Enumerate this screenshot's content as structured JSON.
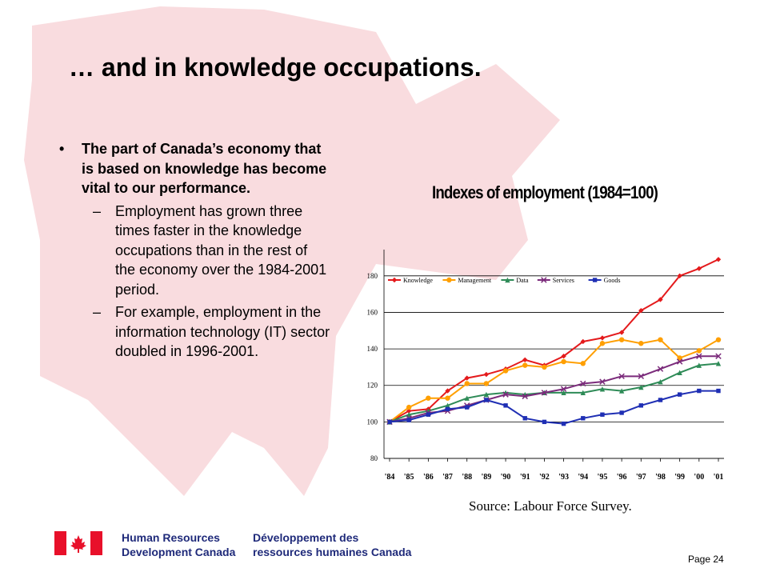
{
  "slide": {
    "title": "… and in knowledge occupations.",
    "bullet": "The part of Canada’s economy that is based on knowledge has become vital to our performance.",
    "sub_bullets": [
      "Employment has grown three times faster in the knowledge occupations than in the rest of the economy over the 1984-2001 period.",
      "For example, employment in the information technology (IT) sector doubled in 1996-2001."
    ],
    "source": "Source: Labour Force Survey.",
    "page": "Page 24"
  },
  "footer": {
    "org_en_line1": "Human Resources",
    "org_en_line2": "Development Canada",
    "org_fr_line1": "Développement des",
    "org_fr_line2": "ressources humaines Canada"
  },
  "colors": {
    "maple_leaf": "#f9dcdf",
    "flag_red": "#e8102a",
    "org_text": "#1f2a7a"
  },
  "chart_data": {
    "type": "line",
    "title": "Indexes of employment (1984=100)",
    "categories": [
      "'84",
      "'85",
      "'86",
      "'87",
      "'88",
      "'89",
      "'90",
      "'91",
      "'92",
      "'93",
      "'94",
      "'95",
      "'96",
      "'97",
      "'98",
      "'99",
      "'00",
      "'01"
    ],
    "ylim": [
      80,
      190
    ],
    "yticks": [
      80,
      100,
      120,
      140,
      160,
      180
    ],
    "grid": true,
    "legend_position": "top-left",
    "series": [
      {
        "name": "Knowledge",
        "color": "#e41a1c",
        "marker": "diamond",
        "values": [
          100,
          106,
          107,
          117,
          124,
          126,
          129,
          134,
          131,
          136,
          144,
          146,
          149,
          161,
          167,
          180,
          184,
          189
        ]
      },
      {
        "name": "Management",
        "color": "#ff9f00",
        "marker": "circle",
        "values": [
          100,
          108,
          113,
          113,
          121,
          121,
          128,
          131,
          130,
          133,
          132,
          143,
          145,
          143,
          145,
          135,
          139,
          145
        ]
      },
      {
        "name": "Data",
        "color": "#2e8b57",
        "marker": "triangle",
        "values": [
          100,
          104,
          106,
          109,
          113,
          115,
          116,
          115,
          116,
          116,
          116,
          118,
          117,
          119,
          122,
          127,
          131,
          132
        ]
      },
      {
        "name": "Services",
        "color": "#7b2b7b",
        "marker": "cross",
        "values": [
          100,
          102,
          105,
          106,
          109,
          112,
          115,
          114,
          116,
          118,
          121,
          122,
          125,
          125,
          129,
          133,
          136,
          136
        ]
      },
      {
        "name": "Goods",
        "color": "#1f2fb4",
        "marker": "square",
        "values": [
          100,
          101,
          104,
          107,
          108,
          112,
          109,
          102,
          100,
          99,
          102,
          104,
          105,
          109,
          112,
          115,
          117,
          117
        ]
      }
    ]
  }
}
